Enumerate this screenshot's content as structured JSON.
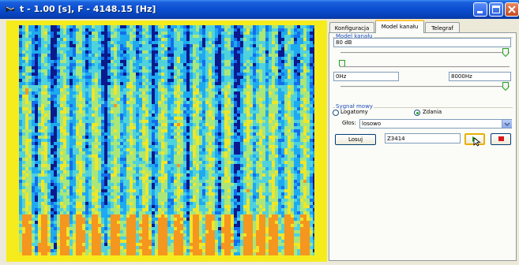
{
  "window": {
    "title": "t - 1.00 [s], F - 4148.15 [Hz]",
    "colors": {
      "titlebar": "#0a4ed0",
      "spectrogram_frame": "#f6ec1c",
      "spectrogram_background": "#0b1a8c"
    }
  },
  "tabs": [
    {
      "label": "Konfiguracja",
      "active": false
    },
    {
      "label": "Model kanału",
      "active": true
    },
    {
      "label": "Telegraf",
      "active": false
    }
  ],
  "channel_model": {
    "group_title": "Model kanału",
    "level_value": "80 dB",
    "freq_low_value": "0Hz",
    "freq_high_value": "8000Hz"
  },
  "speech_signal": {
    "group_title": "Sygnał mowy",
    "options": [
      {
        "label": "Logatomy",
        "selected": false
      },
      {
        "label": "Zdania",
        "selected": true
      }
    ],
    "voice_label": "Głos:",
    "voice_value": "losowo",
    "draw_button": "Losuj",
    "sentence_id": "Z3414"
  },
  "icons": [
    "app-icon",
    "minimize-icon",
    "maximize-icon",
    "close-icon",
    "play-icon",
    "stop-icon",
    "cursor-icon",
    "chevron-down-icon"
  ]
}
